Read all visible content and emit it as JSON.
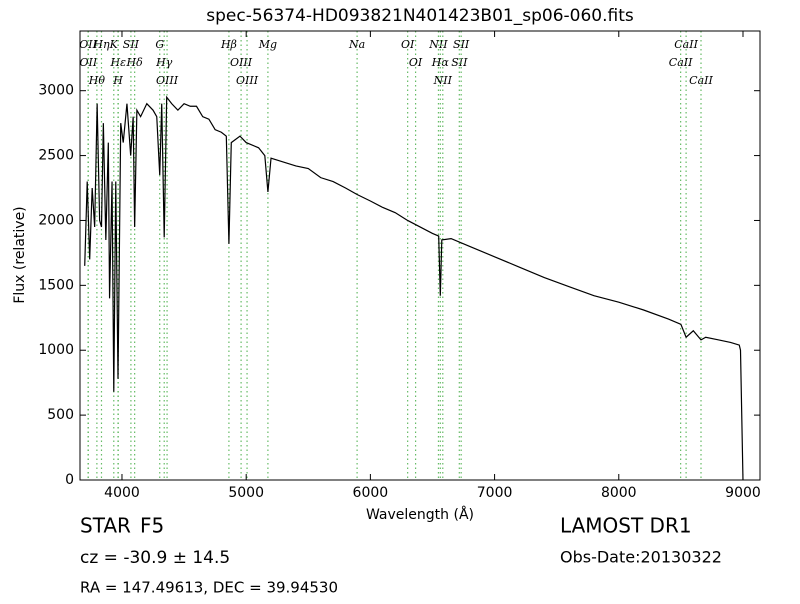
{
  "chart_data": {
    "type": "line",
    "title": "spec-56374-HD093821N401423B01_sp06-060.fits",
    "x_label": "Wavelength (Å)",
    "y_label": "Flux (relative)",
    "xlim": [
      3662,
      9137
    ],
    "ylim": [
      0,
      3460
    ],
    "xticks": [
      4000,
      5000,
      6000,
      7000,
      8000,
      9000
    ],
    "yticks": [
      0,
      500,
      1000,
      1500,
      2000,
      2500,
      3000
    ],
    "color": "#000000",
    "line_color": "#66bb66",
    "x": [
      3700,
      3720,
      3740,
      3760,
      3780,
      3800,
      3820,
      3835,
      3850,
      3870,
      3890,
      3900,
      3920,
      3934,
      3950,
      3968,
      3990,
      4010,
      4040,
      4070,
      4090,
      4102,
      4120,
      4150,
      4200,
      4250,
      4280,
      4304,
      4320,
      4340,
      4360,
      4400,
      4450,
      4500,
      4550,
      4600,
      4650,
      4700,
      4750,
      4800,
      4840,
      4861,
      4880,
      4950,
      5000,
      5100,
      5150,
      5175,
      5200,
      5300,
      5400,
      5500,
      5600,
      5700,
      5800,
      5893,
      6000,
      6100,
      6200,
      6300,
      6400,
      6500,
      6550,
      6563,
      6575,
      6650,
      6800,
      7000,
      7200,
      7400,
      7600,
      7800,
      8000,
      8200,
      8400,
      8500,
      8542,
      8600,
      8662,
      8700,
      8800,
      8900,
      8970,
      8980,
      9000
    ],
    "values": [
      1650,
      2300,
      1700,
      2250,
      1950,
      2900,
      2000,
      1950,
      2750,
      1850,
      2600,
      1400,
      2300,
      680,
      2300,
      780,
      2750,
      2600,
      2900,
      2500,
      2800,
      1950,
      2850,
      2800,
      2900,
      2850,
      2800,
      2350,
      2900,
      1870,
      2950,
      2900,
      2850,
      2900,
      2880,
      2880,
      2800,
      2780,
      2700,
      2680,
      2650,
      1820,
      2600,
      2650,
      2600,
      2560,
      2500,
      2220,
      2480,
      2450,
      2420,
      2400,
      2330,
      2300,
      2250,
      2200,
      2150,
      2100,
      2060,
      2000,
      1950,
      1900,
      1880,
      1420,
      1850,
      1860,
      1800,
      1720,
      1640,
      1560,
      1490,
      1420,
      1370,
      1310,
      1240,
      1200,
      1100,
      1150,
      1080,
      1100,
      1080,
      1060,
      1040,
      1000,
      0
    ],
    "lines": [
      {
        "label": "OII",
        "wavelength": 3727
      },
      {
        "label": "OII",
        "wavelength": 3729
      },
      {
        "label": "Hθ",
        "wavelength": 3798
      },
      {
        "label": "Hη",
        "wavelength": 3835
      },
      {
        "label": "K",
        "wavelength": 3934
      },
      {
        "label": "Hε",
        "wavelength": 3970
      },
      {
        "label": "H",
        "wavelength": 3968
      },
      {
        "label": "SII",
        "wavelength": 4072
      },
      {
        "label": "Hδ",
        "wavelength": 4102
      },
      {
        "label": "G",
        "wavelength": 4304
      },
      {
        "label": "Hγ",
        "wavelength": 4340
      },
      {
        "label": "OIII",
        "wavelength": 4363
      },
      {
        "label": "Hβ",
        "wavelength": 4861
      },
      {
        "label": "OIII",
        "wavelength": 4959
      },
      {
        "label": "OIII",
        "wavelength": 5007
      },
      {
        "label": "Mg",
        "wavelength": 5175
      },
      {
        "label": "Na",
        "wavelength": 5893
      },
      {
        "label": "OI",
        "wavelength": 6300
      },
      {
        "label": "OI",
        "wavelength": 6364
      },
      {
        "label": "NII",
        "wavelength": 6548
      },
      {
        "label": "Hα",
        "wavelength": 6563
      },
      {
        "label": "NII",
        "wavelength": 6583
      },
      {
        "label": "SII",
        "wavelength": 6716
      },
      {
        "label": "SII",
        "wavelength": 6731
      },
      {
        "label": "CaII",
        "wavelength": 8542
      },
      {
        "label": "CaII",
        "wavelength": 8498
      },
      {
        "label": "CaII",
        "wavelength": 8662
      }
    ]
  },
  "footer": {
    "class": "STAR",
    "subclass": "F5",
    "cz": "cz = -30.9 ± 14.5",
    "coords": "RA = 147.49613, DEC = 39.94530",
    "release": "LAMOST DR1",
    "obs_date": "Obs-Date:20130322"
  }
}
